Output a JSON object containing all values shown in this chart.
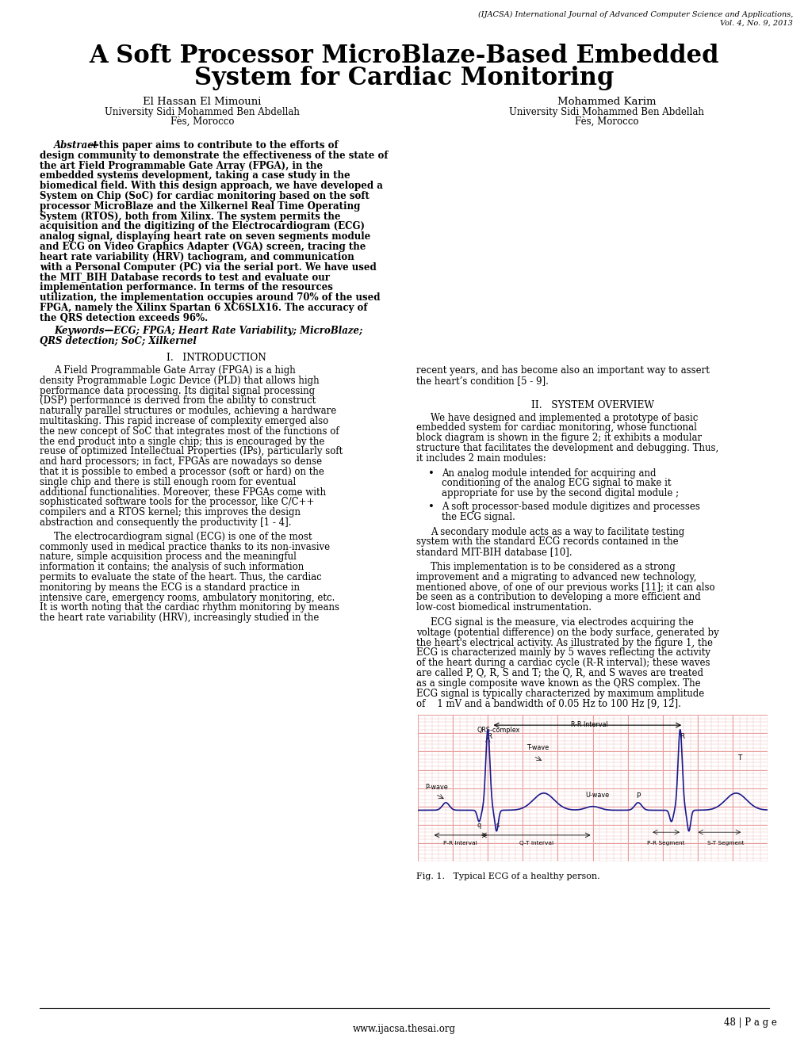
{
  "journal_header1": "(IJACSA) International Journal of Advanced Computer Science and Applications,",
  "journal_header2": "Vol. 4, No. 9, 2013",
  "title_line1": "A Soft Processor MicroBlaze-Based Embedded",
  "title_line2": "System for Cardiac Monitoring",
  "author1_name": "El Hassan El Mimouni",
  "author1_affil1": "University Sidi Mohammed Ben Abdellah",
  "author1_affil2": "Fès, Morocco",
  "author2_name": "Mohammed Karim",
  "author2_affil1": "University Sidi Mohammed Ben Abdellah",
  "author2_affil2": "Fès, Morocco",
  "abstract_intro": "Abstract",
  "abstract_dash_text": "—this paper aims to contribute to the efforts of",
  "abstract_lines": [
    "design community to demonstrate the effectiveness of the state of",
    "the art Field Programmable Gate Array (FPGA), in the",
    "embedded systems development, taking a case study in the",
    "biomedical field. With this design approach, we have developed a",
    "System on Chip (SoC) for cardiac monitoring based on the soft",
    "processor MicroBlaze and the Xilkernel Real Time Operating",
    "System (RTOS), both from Xilinx. The system permits the",
    "acquisition and the digitizing of the Electrocardiogram (ECG)",
    "analog signal, displaying heart rate on seven segments module",
    "and ECG on Video Graphics Adapter (VGA) screen, tracing the",
    "heart rate variability (HRV) tachogram, and communication",
    "with a Personal Computer (PC) via the serial port. We have used",
    "the MIT_BIH Database records to test and evaluate our",
    "implementation performance. In terms of the resources",
    "utilization, the implementation occupies around 70% of the used",
    "FPGA, namely the Xilinx Spartan 6 XC6SLX16. The accuracy of",
    "the QRS detection exceeds 96%."
  ],
  "keywords_line1": "Keywords—ECG; FPGA; Heart Rate Variability; MicroBlaze;",
  "keywords_line2": "QRS detection; SoC; Xilkernel",
  "sec1_title": "I.   INTRODUCTION",
  "sec1_p1_lines": [
    "A Field Programmable Gate Array (FPGA) is a high",
    "density Programmable Logic Device (PLD) that allows high",
    "performance data processing. Its digital signal processing",
    "(DSP) performance is derived from the ability to construct",
    "naturally parallel structures or modules, achieving a hardware",
    "multitasking. This rapid increase of complexity emerged also",
    "the new concept of SoC that integrates most of the functions of",
    "the end product into a single chip; this is encouraged by the",
    "reuse of optimized Intellectual Properties (IPs), particularly soft",
    "and hard processors; in fact, FPGAs are nowadays so dense",
    "that it is possible to embed a processor (soft or hard) on the",
    "single chip and there is still enough room for eventual",
    "additional functionalities. Moreover, these FPGAs come with",
    "sophisticated software tools for the processor, like C/C++",
    "compilers and a RTOS kernel; this improves the design",
    "abstraction and consequently the productivity [1 - 4]."
  ],
  "sec1_p2_lines": [
    "The electrocardiogram signal (ECG) is one of the most",
    "commonly used in medical practice thanks to its non-invasive",
    "nature, simple acquisition process and the meaningful",
    "information it contains; the analysis of such information",
    "permits to evaluate the state of the heart. Thus, the cardiac",
    "monitoring by means the ECG is a standard practice in",
    "intensive care, emergency rooms, ambulatory monitoring, etc.",
    "It is worth noting that the cardiac rhythm monitoring by means",
    "the heart rate variability (HRV), increasingly studied in the"
  ],
  "col2_intro_lines": [
    "recent years, and has become also an important way to assert",
    "the heart’s condition [5 - 9]."
  ],
  "sec2_title": "II.   SYSTEM OVERVIEW",
  "sec2_p1_lines": [
    "We have designed and implemented a prototype of basic",
    "embedded system for cardiac monitoring, whose functional",
    "block diagram is shown in the figure 2; it exhibits a modular",
    "structure that facilitates the development and debugging. Thus,",
    "it includes 2 main modules:"
  ],
  "bullet1_lines": [
    "An analog module intended for acquiring and",
    "conditioning of the analog ECG signal to make it",
    "appropriate for use by the second digital module ;"
  ],
  "bullet2_lines": [
    "A soft processor-based module digitizes and processes",
    "the ECG signal."
  ],
  "sec2_p2_lines": [
    "A secondary module acts as a way to facilitate testing",
    "system with the standard ECG records contained in the",
    "standard MIT-BIH database [10]."
  ],
  "sec2_p3_lines": [
    "This implementation is to be considered as a strong",
    "improvement and a migrating to advanced new technology,",
    "mentioned above, of one of our previous works [11]; it can also",
    "be seen as a contribution to developing a more efficient and",
    "low-cost biomedical instrumentation."
  ],
  "sec2_p4_lines": [
    "ECG signal is the measure, via electrodes acquiring the",
    "voltage (potential difference) on the body surface, generated by",
    "the heart's electrical activity. As illustrated by the figure 1, the",
    "ECG is characterized mainly by 5 waves reflecting the activity",
    "of the heart during a cardiac cycle (R-R interval); these waves",
    "are called P, Q, R, S and T; the Q, R, and S waves are treated",
    "as a single composite wave known as the QRS complex. The",
    "ECG signal is typically characterized by maximum amplitude",
    "of    1 mV and a bandwidth of 0.05 Hz to 100 Hz [9, 12]."
  ],
  "fig_caption": "Fig. 1.   Typical ECG of a healthy person.",
  "page_number": "48 | P a g e",
  "website": "www.ijacsa.thesai.org",
  "ecg_bg": "#f5d5d5",
  "ecg_grid_major": "#e89090",
  "ecg_grid_minor": "#f0b8b8",
  "ecg_line_color": "#1a1a8c"
}
